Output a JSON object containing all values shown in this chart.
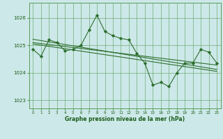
{
  "x": [
    0,
    1,
    2,
    3,
    4,
    5,
    6,
    7,
    8,
    9,
    10,
    11,
    12,
    13,
    14,
    15,
    16,
    17,
    18,
    19,
    20,
    21,
    22,
    23
  ],
  "y": [
    1024.85,
    1024.6,
    1025.2,
    1025.1,
    1024.8,
    1024.85,
    1025.0,
    1025.55,
    1026.1,
    1025.5,
    1025.35,
    1025.25,
    1025.2,
    1024.7,
    1024.35,
    1023.55,
    1023.65,
    1023.5,
    1024.0,
    1024.35,
    1024.35,
    1024.85,
    1024.75,
    1024.35
  ],
  "line_color": "#2d6e2d",
  "marker_color": "#2d6e2d",
  "bg_color": "#cce8e8",
  "grid_color": "#5a9e5a",
  "text_color": "#1a5c1a",
  "xlabel": "Graphe pression niveau de la mer (hPa)",
  "yticks": [
    1023,
    1024,
    1025,
    1026
  ],
  "xtick_labels": [
    "0",
    "1",
    "2",
    "3",
    "4",
    "5",
    "6",
    "7",
    "8",
    "9",
    "10",
    "11",
    "12",
    "13",
    "14",
    "15",
    "16",
    "17",
    "18",
    "19",
    "20",
    "21",
    "22",
    "23"
  ],
  "ylim": [
    1022.7,
    1026.55
  ],
  "xlim": [
    -0.5,
    23.5
  ],
  "trend_lines": [
    {
      "x0": 0,
      "y0": 1025.1,
      "x1": 23,
      "y1": 1024.28
    },
    {
      "x0": 0,
      "y0": 1025.22,
      "x1": 23,
      "y1": 1024.12
    },
    {
      "x0": 0,
      "y0": 1025.05,
      "x1": 23,
      "y1": 1024.05
    }
  ]
}
